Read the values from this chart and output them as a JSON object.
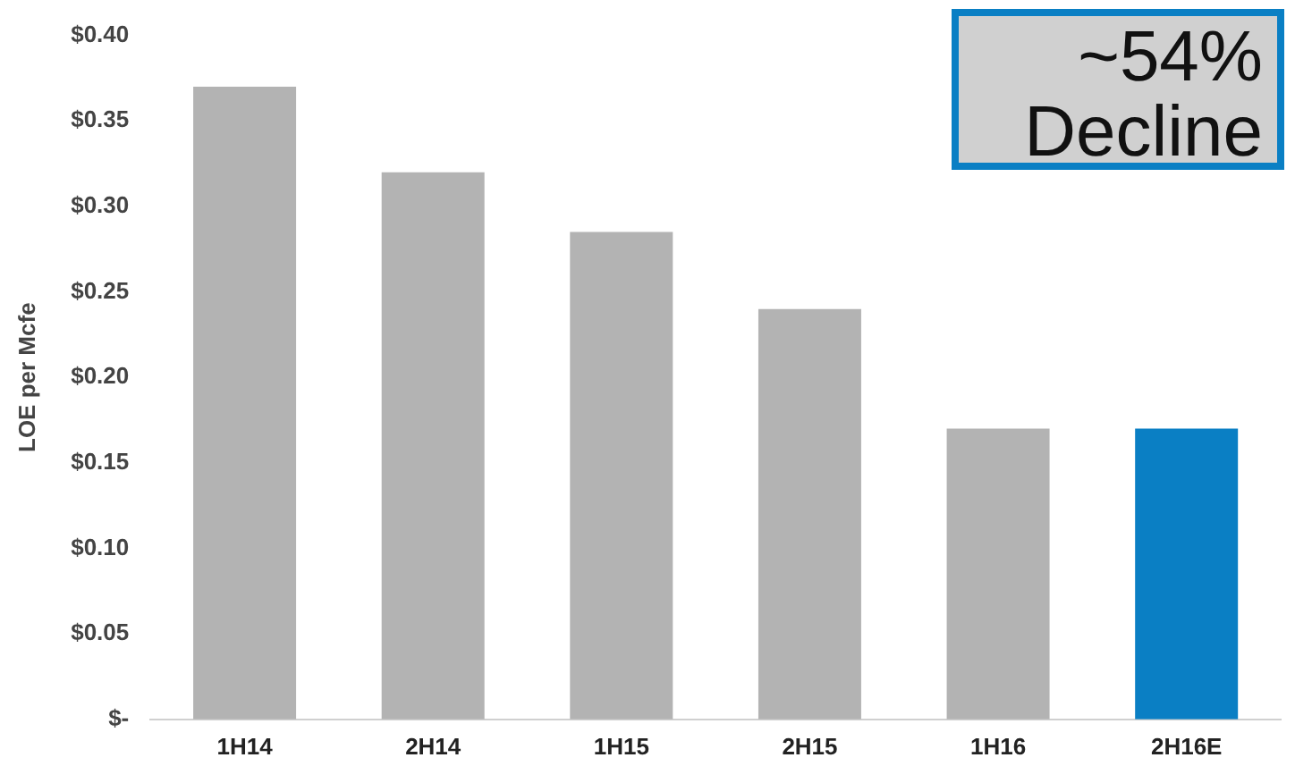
{
  "chart_data": {
    "type": "bar",
    "ylabel": "LOE per Mcfe",
    "categories": [
      "1H14",
      "2H14",
      "1H15",
      "2H15",
      "1H16",
      "2H16E"
    ],
    "values": [
      0.37,
      0.32,
      0.285,
      0.24,
      0.17,
      0.17
    ],
    "colors": [
      "#b3b3b3",
      "#b3b3b3",
      "#b3b3b3",
      "#b3b3b3",
      "#b3b3b3",
      "#0a7fc4"
    ],
    "ylim": [
      0,
      0.4
    ],
    "yticks": [
      {
        "value": 0,
        "label": "$-"
      },
      {
        "value": 0.05,
        "label": "$0.05"
      },
      {
        "value": 0.1,
        "label": "$0.10"
      },
      {
        "value": 0.15,
        "label": "$0.15"
      },
      {
        "value": 0.2,
        "label": "$0.20"
      },
      {
        "value": 0.25,
        "label": "$0.25"
      },
      {
        "value": 0.3,
        "label": "$0.30"
      },
      {
        "value": 0.35,
        "label": "$0.35"
      },
      {
        "value": 0.4,
        "label": "$0.40"
      }
    ],
    "grid": false,
    "legend": false,
    "annotations": [
      "~54%\nDecline"
    ]
  }
}
